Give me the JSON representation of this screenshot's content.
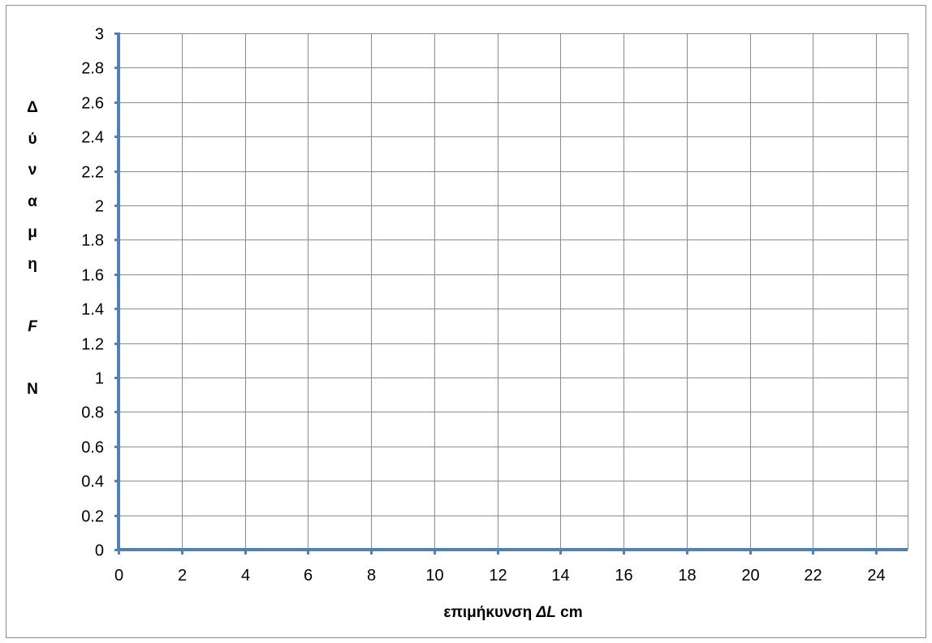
{
  "chart_data": {
    "type": "line",
    "title": "",
    "x_ticks": [
      "0",
      "2",
      "4",
      "6",
      "8",
      "10",
      "12",
      "14",
      "16",
      "18",
      "20",
      "22",
      "24"
    ],
    "y_ticks": [
      "0",
      "0.2",
      "0.4",
      "0.6",
      "0.8",
      "1",
      "1.2",
      "1.4",
      "1.6",
      "1.8",
      "2",
      "2.2",
      "2.4",
      "2.6",
      "2.8",
      "3"
    ],
    "xlim": [
      0,
      25
    ],
    "ylim": [
      0,
      3
    ],
    "x_grid_step": 2,
    "y_grid_step": 0.2,
    "grid": true,
    "legend": "none",
    "series": [],
    "xlabel": {
      "prefix": "επιμήκυνση ",
      "italic": "ΔL",
      "suffix": " cm"
    },
    "ylabel": [
      "Δ",
      "ύ",
      "ν",
      "α",
      "μ",
      "η",
      "",
      "F",
      "",
      "N"
    ]
  },
  "colors": {
    "axis": "#4f81bd",
    "grid": "#8c8c8c",
    "border": "#8c8c8c"
  }
}
